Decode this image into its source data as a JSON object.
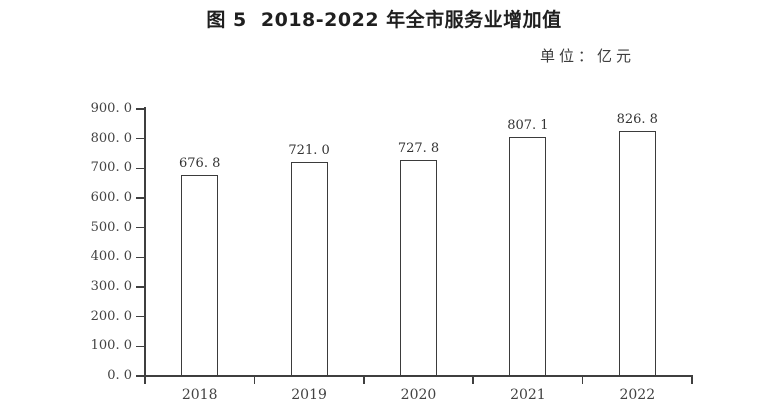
{
  "chart": {
    "title": "图 5  2018-2022 年全市服务业增加值",
    "unit_label": "单位：亿元"
  },
  "chart_data": {
    "type": "bar",
    "title": "图 5  2018-2022 年全市服务业增加值",
    "unit": "亿元",
    "categories": [
      "2018",
      "2019",
      "2020",
      "2021",
      "2022"
    ],
    "values": [
      676.8,
      721.0,
      727.8,
      807.1,
      826.8
    ],
    "value_labels": [
      "676. 8",
      "721. 0",
      "727. 8",
      "807. 1",
      "826. 8"
    ],
    "xlabel": "",
    "ylabel": "",
    "ylim": [
      0,
      900
    ],
    "y_tick_step": 100,
    "y_tick_labels": [
      "0. 0",
      "100. 0",
      "200. 0",
      "300. 0",
      "400. 0",
      "500. 0",
      "600. 0",
      "700. 0",
      "800. 0",
      "900. 0"
    ],
    "grid": false,
    "legend": false,
    "bar_fill": "#ffffff",
    "bar_border": "#3b3b3b",
    "axis_color": "#3f3f3f"
  }
}
